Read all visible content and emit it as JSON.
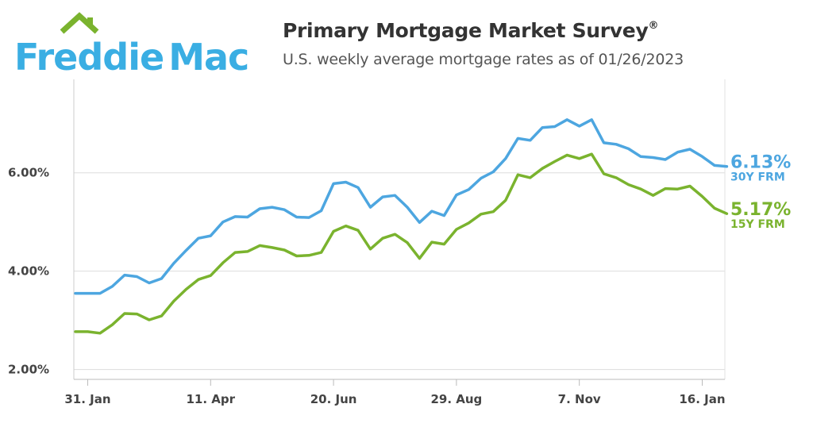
{
  "brand": {
    "name_part1": "Freddie",
    "name_part2": "Mac",
    "color": "#3aaee3",
    "roof_color": "#7ab32e"
  },
  "header": {
    "title": "Primary Mortgage Market Survey",
    "title_mark": "®",
    "subtitle": "U.S. weekly average mortgage rates as of 01/26/2023"
  },
  "chart_data": {
    "type": "line",
    "x_start_week": 0,
    "y_ticks": [
      {
        "label": "2.00%",
        "value": 2
      },
      {
        "label": "4.00%",
        "value": 4
      },
      {
        "label": "6.00%",
        "value": 6
      }
    ],
    "ylim": [
      1.8,
      7.9
    ],
    "x_ticks": [
      {
        "label": "31. Jan",
        "week": 1
      },
      {
        "label": "11. Apr",
        "week": 11
      },
      {
        "label": "20. Jun",
        "week": 21
      },
      {
        "label": "29. Aug",
        "week": 31
      },
      {
        "label": "7. Nov",
        "week": 41
      },
      {
        "label": "16. Jan",
        "week": 51
      }
    ],
    "grid": true,
    "series": [
      {
        "name": "30Y FRM",
        "color": "#4da6e0",
        "end_label": "6.13%",
        "values": [
          3.55,
          3.55,
          3.55,
          3.69,
          3.92,
          3.89,
          3.76,
          3.85,
          4.16,
          4.42,
          4.67,
          4.72,
          5.0,
          5.11,
          5.1,
          5.27,
          5.3,
          5.25,
          5.1,
          5.09,
          5.23,
          5.78,
          5.81,
          5.7,
          5.3,
          5.51,
          5.54,
          5.3,
          4.99,
          5.22,
          5.13,
          5.55,
          5.66,
          5.89,
          6.02,
          6.29,
          6.7,
          6.66,
          6.92,
          6.94,
          7.08,
          6.95,
          7.08,
          6.61,
          6.58,
          6.49,
          6.33,
          6.31,
          6.27,
          6.42,
          6.48,
          6.33,
          6.15,
          6.13
        ]
      },
      {
        "name": "15Y FRM",
        "color": "#7ab32e",
        "end_label": "5.17%",
        "values": [
          2.77,
          2.77,
          2.74,
          2.91,
          3.14,
          3.13,
          3.01,
          3.09,
          3.39,
          3.63,
          3.83,
          3.91,
          4.17,
          4.38,
          4.4,
          4.52,
          4.48,
          4.43,
          4.31,
          4.32,
          4.38,
          4.81,
          4.92,
          4.83,
          4.45,
          4.67,
          4.75,
          4.58,
          4.26,
          4.59,
          4.55,
          4.85,
          4.98,
          5.16,
          5.21,
          5.44,
          5.96,
          5.9,
          6.09,
          6.23,
          6.36,
          6.29,
          6.38,
          5.98,
          5.9,
          5.76,
          5.67,
          5.54,
          5.68,
          5.67,
          5.73,
          5.52,
          5.28,
          5.17
        ]
      }
    ]
  }
}
